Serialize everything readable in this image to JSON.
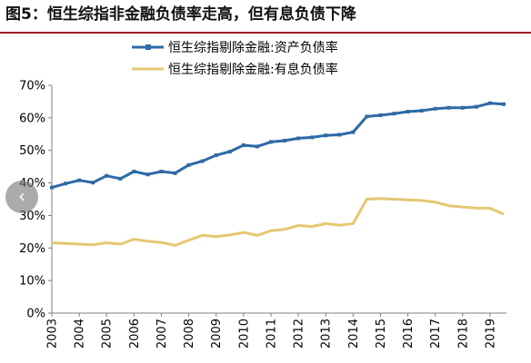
{
  "figure_title": "图5：恒生综指非金融负债率走高，但有息负债下降",
  "nav": {
    "prev_icon": "chevron-left-icon",
    "prev_glyph": "‹"
  },
  "chart_data": {
    "type": "line",
    "title": "图5：恒生综指非金融负债率走高，但有息负债下降",
    "xlabel": "",
    "ylabel": "",
    "x_range": [
      2003,
      2019.6
    ],
    "ylim": [
      0,
      70
    ],
    "y_ticks": [
      0,
      10,
      20,
      30,
      40,
      50,
      60,
      70
    ],
    "y_tick_format": "percent",
    "x_ticks": [
      2003,
      2004,
      2005,
      2006,
      2007,
      2008,
      2009,
      2010,
      2011,
      2012,
      2013,
      2014,
      2015,
      2016,
      2017,
      2018,
      2019
    ],
    "grid": false,
    "legend_position": "top-center",
    "series": [
      {
        "name": "恒生综指剔除金融:资产负债率",
        "color": "#2e6aa6",
        "marker": "square",
        "x": [
          2003,
          2003.5,
          2004,
          2004.5,
          2005,
          2005.5,
          2006,
          2006.5,
          2007,
          2007.5,
          2008,
          2008.5,
          2009,
          2009.5,
          2010,
          2010.5,
          2011,
          2011.5,
          2012,
          2012.5,
          2013,
          2013.5,
          2014,
          2014.5,
          2015,
          2015.5,
          2016,
          2016.5,
          2017,
          2017.5,
          2018,
          2018.5,
          2019,
          2019.5
        ],
        "values": [
          38.6,
          39.8,
          40.8,
          40.1,
          42.2,
          41.3,
          43.5,
          42.6,
          43.5,
          43.0,
          45.5,
          46.7,
          48.5,
          49.6,
          51.6,
          51.2,
          52.6,
          53.0,
          53.7,
          54.0,
          54.6,
          54.8,
          55.6,
          60.4,
          60.8,
          61.3,
          61.9,
          62.2,
          62.8,
          63.1,
          63.1,
          63.4,
          64.5,
          64.2
        ]
      },
      {
        "name": "恒生综指剔除金融:有息负债率",
        "color": "#e5c774",
        "marker": "none",
        "x": [
          2003,
          2003.5,
          2004,
          2004.5,
          2005,
          2005.5,
          2006,
          2006.5,
          2007,
          2007.5,
          2008,
          2008.5,
          2009,
          2009.5,
          2010,
          2010.5,
          2011,
          2011.5,
          2012,
          2012.5,
          2013,
          2013.5,
          2014,
          2014.5,
          2015,
          2015.5,
          2016,
          2016.5,
          2017,
          2017.5,
          2018,
          2018.5,
          2019,
          2019.5
        ],
        "values": [
          21.6,
          21.4,
          21.2,
          21.0,
          21.6,
          21.2,
          22.7,
          22.1,
          21.7,
          20.8,
          22.4,
          23.9,
          23.5,
          24.0,
          24.8,
          23.9,
          25.3,
          25.7,
          26.9,
          26.6,
          27.5,
          27.0,
          27.5,
          35.0,
          35.2,
          35.0,
          34.8,
          34.6,
          34.1,
          33.0,
          32.6,
          32.3,
          32.2,
          30.4
        ]
      }
    ]
  }
}
